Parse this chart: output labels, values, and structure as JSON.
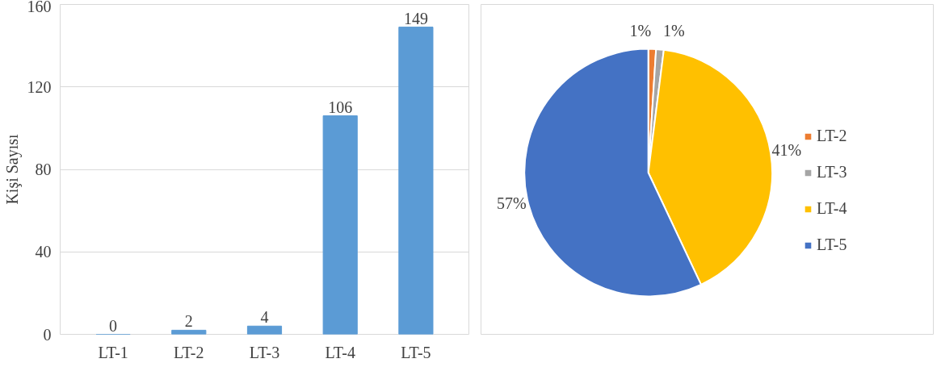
{
  "chart_data": [
    {
      "type": "bar",
      "ylabel": "Kişi Sayısı",
      "categories": [
        "LT-1",
        "LT-2",
        "LT-3",
        "LT-4",
        "LT-5"
      ],
      "values": [
        0,
        2,
        4,
        106,
        149
      ],
      "color": "#5b9bd5",
      "ylim": [
        0,
        160
      ],
      "yticks": [
        0,
        40,
        80,
        120,
        160
      ],
      "grid": "y",
      "data_labels": true
    },
    {
      "type": "pie",
      "categories": [
        "LT-2",
        "LT-3",
        "LT-4",
        "LT-5"
      ],
      "values": [
        1,
        1,
        41,
        57
      ],
      "colors": [
        "#ed7d31",
        "#a5a5a5",
        "#ffc000",
        "#4472c4"
      ],
      "legend": "right",
      "value_labels": [
        "1%",
        "1%",
        "41%",
        "57%"
      ]
    }
  ]
}
